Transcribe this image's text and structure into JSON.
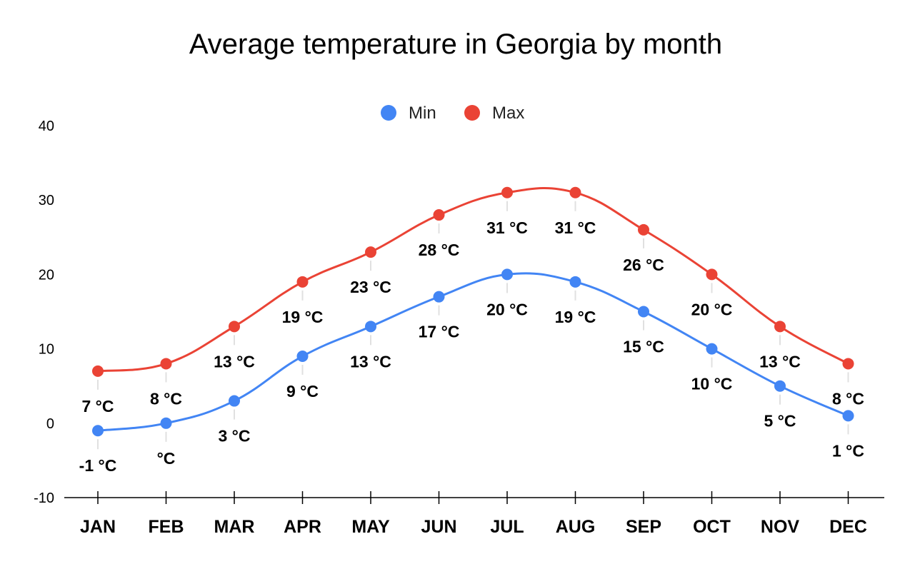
{
  "chart_data": {
    "type": "line",
    "title": "Average temperature in Georgia by month",
    "xlabel": "",
    "ylabel": "",
    "categories": [
      "JAN",
      "FEB",
      "MAR",
      "APR",
      "MAY",
      "JUN",
      "JUL",
      "AUG",
      "SEP",
      "OCT",
      "NOV",
      "DEC"
    ],
    "ylim": [
      -10,
      40
    ],
    "yticks": [
      "-10",
      "0",
      "10",
      "20",
      "30",
      "40"
    ],
    "grid": false,
    "legend_position": "top-center",
    "smooth": true,
    "series": [
      {
        "name": "Min",
        "color": "#4285f4",
        "values": [
          -1,
          0,
          3,
          9,
          13,
          17,
          20,
          19,
          15,
          10,
          5,
          1
        ],
        "labels": [
          "-1 °C",
          "°C",
          "3 °C",
          "9 °C",
          "13 °C",
          "17 °C",
          "20 °C",
          "19 °C",
          "15 °C",
          "10 °C",
          "5 °C",
          "1 °C"
        ]
      },
      {
        "name": "Max",
        "color": "#ea4335",
        "values": [
          7,
          8,
          13,
          19,
          23,
          28,
          31,
          31,
          26,
          20,
          13,
          8
        ],
        "labels": [
          "7 °C",
          "8 °C",
          "13 °C",
          "19 °C",
          "23 °C",
          "28 °C",
          "31 °C",
          "31 °C",
          "26 °C",
          "20 °C",
          "13 °C",
          "8 °C"
        ]
      }
    ]
  }
}
